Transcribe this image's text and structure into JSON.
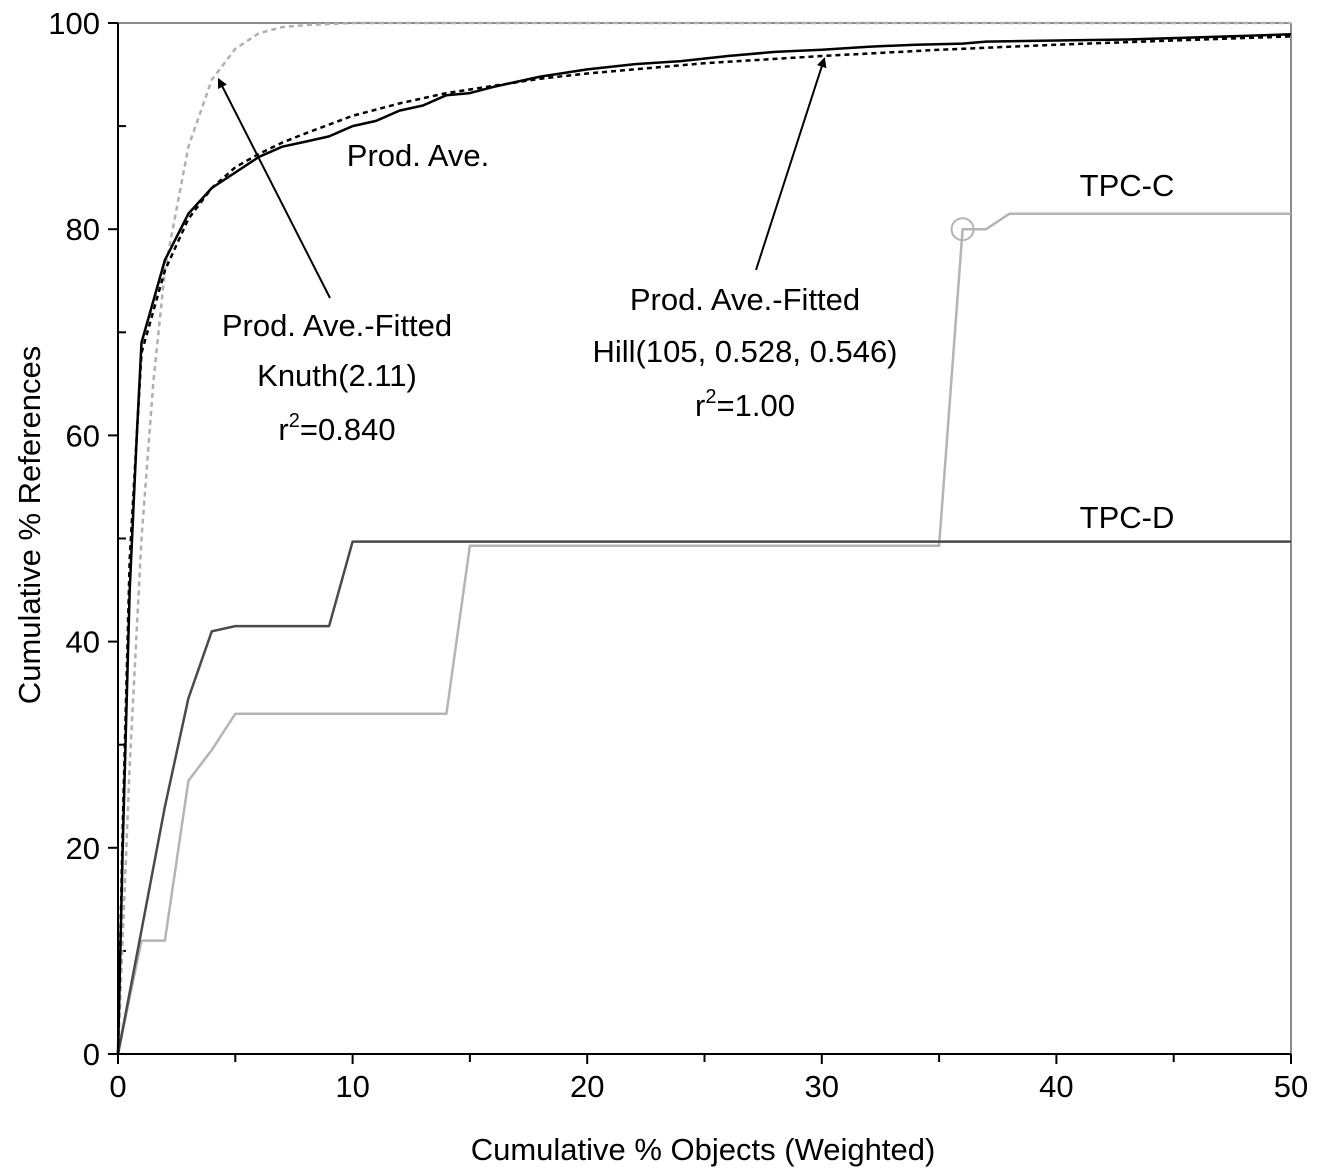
{
  "chart_data": {
    "type": "line",
    "xlabel": "Cumulative % Objects (Weighted)",
    "ylabel": "Cumulative % References",
    "xlim": [
      0,
      50
    ],
    "ylim": [
      0,
      100
    ],
    "x_ticks": [
      0,
      10,
      20,
      30,
      40,
      50
    ],
    "y_ticks": [
      0,
      20,
      40,
      60,
      80,
      100
    ],
    "grid": false,
    "legend": "none (inline annotations)",
    "series": [
      {
        "name": "Prod. Ave.",
        "color": "#000000",
        "style": "solid",
        "x": [
          0,
          0.2,
          0.5,
          0.8,
          1,
          2,
          3,
          4,
          5,
          6,
          7,
          8,
          9,
          10,
          11,
          12,
          13,
          14,
          15,
          16,
          18,
          20,
          22,
          24,
          26,
          28,
          30,
          32,
          34,
          36,
          37,
          40,
          43,
          46,
          50
        ],
        "y": [
          0,
          20,
          45,
          60,
          69,
          77,
          81.5,
          84,
          85.5,
          87,
          88,
          88.5,
          89,
          90,
          90.5,
          91.5,
          92,
          93,
          93.2,
          93.8,
          94.8,
          95.5,
          96,
          96.3,
          96.8,
          97.2,
          97.4,
          97.7,
          97.9,
          98,
          98.2,
          98.3,
          98.4,
          98.6,
          98.9
        ]
      },
      {
        "name": "Prod. Ave.-Fitted Hill(105, 0.528, 0.546)",
        "color": "#000000",
        "style": "dashed",
        "x": [
          0,
          0.2,
          0.5,
          1,
          2,
          3,
          4,
          5,
          6,
          7,
          8,
          10,
          12,
          14,
          16,
          18,
          20,
          25,
          30,
          35,
          40,
          45,
          50
        ],
        "y": [
          0,
          22,
          48,
          68,
          76,
          81,
          84,
          86,
          87.3,
          88.4,
          89.3,
          91,
          92.2,
          93.2,
          93.9,
          94.6,
          95.1,
          96.1,
          96.8,
          97.4,
          97.9,
          98.3,
          98.7
        ]
      },
      {
        "name": "Prod. Ave.-Fitted Knuth(2.11)",
        "color": "#b0b0b0",
        "style": "dashed",
        "x": [
          0,
          0.5,
          1,
          1.5,
          2,
          3,
          4,
          5,
          6,
          7,
          8,
          9,
          10,
          50
        ],
        "y": [
          0,
          28,
          50,
          65,
          76,
          88,
          94.5,
          97.5,
          99,
          99.6,
          99.8,
          99.9,
          100,
          100
        ]
      },
      {
        "name": "TPC-C",
        "color": "#b4b4b4",
        "style": "solid",
        "x": [
          0,
          1,
          2,
          3,
          4,
          5,
          14,
          15,
          35,
          36,
          37,
          38,
          50
        ],
        "y": [
          0,
          11,
          11,
          26.5,
          29.5,
          33,
          33,
          49.3,
          49.3,
          80,
          80,
          81.5,
          81.5
        ]
      },
      {
        "name": "TPC-D",
        "color": "#4a4a4a",
        "style": "solid",
        "x": [
          0,
          1,
          2,
          3,
          4,
          5,
          9,
          10,
          50
        ],
        "y": [
          0,
          12,
          24,
          34.5,
          41,
          41.5,
          41.5,
          49.7,
          49.7
        ]
      }
    ],
    "annotations": {
      "prod_ave": "Prod. Ave.",
      "knuth_line1": "Prod. Ave.-Fitted",
      "knuth_line2": "Knuth(2.11)",
      "knuth_r2_prefix": "r",
      "knuth_r2_sup": "2",
      "knuth_r2_value": "=0.840",
      "hill_line1": "Prod. Ave.-Fitted",
      "hill_line2": "Hill(105, 0.528, 0.546)",
      "hill_r2_prefix": "r",
      "hill_r2_sup": "2",
      "hill_r2_value": "=1.00",
      "tpcc": "TPC-C",
      "tpcd": "TPC-D"
    },
    "marker": {
      "series": "TPC-C",
      "x": 36,
      "y": 80,
      "shape": "open circle"
    }
  }
}
